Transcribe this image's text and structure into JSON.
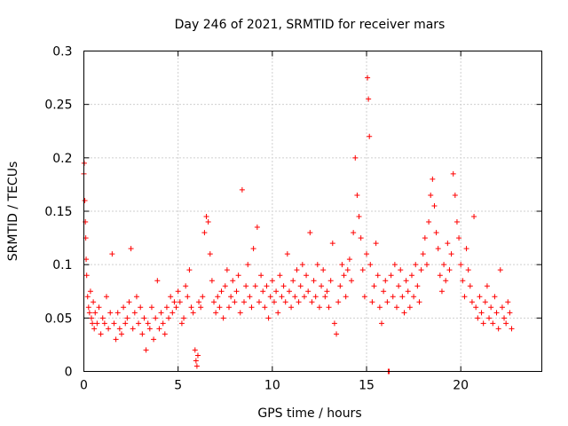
{
  "chart_data": {
    "type": "scatter",
    "title": "Day 246 of 2021, SRMTID for receiver mars",
    "xlabel": "GPS time / hours",
    "ylabel": "SRMTID / TECUs",
    "xlim": [
      0,
      24.3
    ],
    "ylim": [
      0,
      0.3
    ],
    "xticks": [
      0,
      5,
      10,
      15,
      20
    ],
    "xtick_labels": [
      "0",
      "5",
      "10",
      "15",
      "20"
    ],
    "yticks": [
      0,
      0.05,
      0.1,
      0.15,
      0.2,
      0.25,
      0.3
    ],
    "ytick_labels": [
      "0",
      "0.05",
      "0.1",
      "0.15",
      "0.2",
      "0.25",
      "0.3"
    ],
    "grid": true,
    "marker": "plus",
    "colors": {
      "series": "#ff0000",
      "grid": "#a0a0a0",
      "axes": "#000000"
    },
    "series": [
      {
        "name": "SRMTID",
        "points": [
          [
            0.0,
            0.185
          ],
          [
            0.02,
            0.195
          ],
          [
            0.05,
            0.16
          ],
          [
            0.08,
            0.14
          ],
          [
            0.1,
            0.125
          ],
          [
            0.12,
            0.105
          ],
          [
            0.15,
            0.09
          ],
          [
            0.2,
            0.07
          ],
          [
            0.25,
            0.06
          ],
          [
            0.3,
            0.055
          ],
          [
            0.35,
            0.075
          ],
          [
            0.4,
            0.05
          ],
          [
            0.45,
            0.045
          ],
          [
            0.5,
            0.065
          ],
          [
            0.55,
            0.04
          ],
          [
            0.6,
            0.055
          ],
          [
            0.7,
            0.045
          ],
          [
            0.8,
            0.06
          ],
          [
            0.9,
            0.035
          ],
          [
            1.0,
            0.05
          ],
          [
            1.1,
            0.045
          ],
          [
            1.2,
            0.07
          ],
          [
            1.3,
            0.04
          ],
          [
            1.4,
            0.055
          ],
          [
            1.5,
            0.11
          ],
          [
            1.6,
            0.045
          ],
          [
            1.7,
            0.03
          ],
          [
            1.8,
            0.055
          ],
          [
            1.9,
            0.04
          ],
          [
            2.0,
            0.035
          ],
          [
            2.1,
            0.06
          ],
          [
            2.2,
            0.045
          ],
          [
            2.3,
            0.05
          ],
          [
            2.4,
            0.065
          ],
          [
            2.5,
            0.115
          ],
          [
            2.6,
            0.04
          ],
          [
            2.7,
            0.055
          ],
          [
            2.8,
            0.07
          ],
          [
            2.9,
            0.045
          ],
          [
            3.0,
            0.06
          ],
          [
            3.1,
            0.035
          ],
          [
            3.2,
            0.05
          ],
          [
            3.3,
            0.02
          ],
          [
            3.4,
            0.045
          ],
          [
            3.5,
            0.04
          ],
          [
            3.6,
            0.06
          ],
          [
            3.7,
            0.03
          ],
          [
            3.8,
            0.05
          ],
          [
            3.9,
            0.085
          ],
          [
            4.0,
            0.04
          ],
          [
            4.1,
            0.055
          ],
          [
            4.2,
            0.045
          ],
          [
            4.3,
            0.035
          ],
          [
            4.4,
            0.06
          ],
          [
            4.5,
            0.05
          ],
          [
            4.6,
            0.07
          ],
          [
            4.7,
            0.055
          ],
          [
            4.8,
            0.065
          ],
          [
            4.9,
            0.06
          ],
          [
            5.0,
            0.075
          ],
          [
            5.1,
            0.065
          ],
          [
            5.2,
            0.045
          ],
          [
            5.3,
            0.05
          ],
          [
            5.4,
            0.08
          ],
          [
            5.5,
            0.07
          ],
          [
            5.6,
            0.095
          ],
          [
            5.7,
            0.06
          ],
          [
            5.8,
            0.055
          ],
          [
            5.9,
            0.02
          ],
          [
            5.95,
            0.01
          ],
          [
            6.0,
            0.005
          ],
          [
            6.05,
            0.015
          ],
          [
            6.1,
            0.065
          ],
          [
            6.2,
            0.06
          ],
          [
            6.3,
            0.07
          ],
          [
            6.4,
            0.13
          ],
          [
            6.5,
            0.145
          ],
          [
            6.6,
            0.14
          ],
          [
            6.7,
            0.11
          ],
          [
            6.8,
            0.085
          ],
          [
            6.9,
            0.065
          ],
          [
            7.0,
            0.055
          ],
          [
            7.1,
            0.07
          ],
          [
            7.2,
            0.06
          ],
          [
            7.3,
            0.075
          ],
          [
            7.4,
            0.05
          ],
          [
            7.5,
            0.08
          ],
          [
            7.6,
            0.095
          ],
          [
            7.7,
            0.06
          ],
          [
            7.8,
            0.07
          ],
          [
            7.9,
            0.085
          ],
          [
            8.0,
            0.065
          ],
          [
            8.1,
            0.075
          ],
          [
            8.2,
            0.09
          ],
          [
            8.3,
            0.055
          ],
          [
            8.4,
            0.17
          ],
          [
            8.5,
            0.065
          ],
          [
            8.6,
            0.08
          ],
          [
            8.7,
            0.1
          ],
          [
            8.8,
            0.07
          ],
          [
            8.9,
            0.06
          ],
          [
            9.0,
            0.115
          ],
          [
            9.1,
            0.08
          ],
          [
            9.2,
            0.135
          ],
          [
            9.3,
            0.065
          ],
          [
            9.4,
            0.09
          ],
          [
            9.5,
            0.075
          ],
          [
            9.6,
            0.06
          ],
          [
            9.7,
            0.08
          ],
          [
            9.8,
            0.05
          ],
          [
            9.9,
            0.07
          ],
          [
            10.0,
            0.085
          ],
          [
            10.1,
            0.065
          ],
          [
            10.2,
            0.075
          ],
          [
            10.3,
            0.055
          ],
          [
            10.4,
            0.09
          ],
          [
            10.5,
            0.07
          ],
          [
            10.6,
            0.08
          ],
          [
            10.7,
            0.065
          ],
          [
            10.8,
            0.11
          ],
          [
            10.9,
            0.075
          ],
          [
            11.0,
            0.06
          ],
          [
            11.1,
            0.085
          ],
          [
            11.2,
            0.07
          ],
          [
            11.3,
            0.095
          ],
          [
            11.4,
            0.065
          ],
          [
            11.5,
            0.08
          ],
          [
            11.6,
            0.1
          ],
          [
            11.7,
            0.07
          ],
          [
            11.8,
            0.09
          ],
          [
            11.9,
            0.075
          ],
          [
            12.0,
            0.13
          ],
          [
            12.1,
            0.065
          ],
          [
            12.2,
            0.085
          ],
          [
            12.3,
            0.07
          ],
          [
            12.4,
            0.1
          ],
          [
            12.5,
            0.06
          ],
          [
            12.6,
            0.08
          ],
          [
            12.7,
            0.095
          ],
          [
            12.8,
            0.07
          ],
          [
            12.9,
            0.075
          ],
          [
            13.0,
            0.06
          ],
          [
            13.1,
            0.085
          ],
          [
            13.2,
            0.12
          ],
          [
            13.3,
            0.045
          ],
          [
            13.4,
            0.035
          ],
          [
            13.5,
            0.065
          ],
          [
            13.6,
            0.08
          ],
          [
            13.7,
            0.1
          ],
          [
            13.8,
            0.09
          ],
          [
            13.9,
            0.07
          ],
          [
            14.0,
            0.095
          ],
          [
            14.1,
            0.105
          ],
          [
            14.2,
            0.085
          ],
          [
            14.3,
            0.13
          ],
          [
            14.4,
            0.2
          ],
          [
            14.5,
            0.165
          ],
          [
            14.6,
            0.145
          ],
          [
            14.7,
            0.125
          ],
          [
            14.8,
            0.095
          ],
          [
            14.9,
            0.07
          ],
          [
            15.0,
            0.11
          ],
          [
            15.05,
            0.275
          ],
          [
            15.1,
            0.255
          ],
          [
            15.15,
            0.22
          ],
          [
            15.2,
            0.1
          ],
          [
            15.3,
            0.065
          ],
          [
            15.4,
            0.08
          ],
          [
            15.5,
            0.12
          ],
          [
            15.6,
            0.09
          ],
          [
            15.7,
            0.06
          ],
          [
            15.8,
            0.045
          ],
          [
            15.9,
            0.075
          ],
          [
            16.0,
            0.085
          ],
          [
            16.1,
            0.065
          ],
          [
            16.15,
            0.0
          ],
          [
            16.2,
            0.0
          ],
          [
            16.3,
            0.09
          ],
          [
            16.4,
            0.07
          ],
          [
            16.5,
            0.1
          ],
          [
            16.6,
            0.06
          ],
          [
            16.7,
            0.08
          ],
          [
            16.8,
            0.095
          ],
          [
            16.9,
            0.07
          ],
          [
            17.0,
            0.055
          ],
          [
            17.1,
            0.085
          ],
          [
            17.2,
            0.075
          ],
          [
            17.3,
            0.06
          ],
          [
            17.4,
            0.09
          ],
          [
            17.5,
            0.07
          ],
          [
            17.6,
            0.1
          ],
          [
            17.7,
            0.08
          ],
          [
            17.8,
            0.065
          ],
          [
            17.9,
            0.095
          ],
          [
            18.0,
            0.11
          ],
          [
            18.1,
            0.125
          ],
          [
            18.2,
            0.1
          ],
          [
            18.3,
            0.14
          ],
          [
            18.4,
            0.165
          ],
          [
            18.5,
            0.18
          ],
          [
            18.6,
            0.155
          ],
          [
            18.7,
            0.13
          ],
          [
            18.8,
            0.115
          ],
          [
            18.9,
            0.09
          ],
          [
            19.0,
            0.075
          ],
          [
            19.1,
            0.1
          ],
          [
            19.2,
            0.085
          ],
          [
            19.3,
            0.12
          ],
          [
            19.4,
            0.095
          ],
          [
            19.5,
            0.11
          ],
          [
            19.6,
            0.185
          ],
          [
            19.7,
            0.165
          ],
          [
            19.8,
            0.14
          ],
          [
            19.9,
            0.125
          ],
          [
            20.0,
            0.1
          ],
          [
            20.1,
            0.085
          ],
          [
            20.2,
            0.07
          ],
          [
            20.3,
            0.115
          ],
          [
            20.4,
            0.095
          ],
          [
            20.5,
            0.08
          ],
          [
            20.6,
            0.065
          ],
          [
            20.7,
            0.145
          ],
          [
            20.8,
            0.06
          ],
          [
            20.9,
            0.05
          ],
          [
            21.0,
            0.07
          ],
          [
            21.1,
            0.055
          ],
          [
            21.2,
            0.045
          ],
          [
            21.3,
            0.065
          ],
          [
            21.4,
            0.08
          ],
          [
            21.5,
            0.05
          ],
          [
            21.6,
            0.06
          ],
          [
            21.7,
            0.045
          ],
          [
            21.8,
            0.07
          ],
          [
            21.9,
            0.055
          ],
          [
            22.0,
            0.04
          ],
          [
            22.1,
            0.095
          ],
          [
            22.2,
            0.06
          ],
          [
            22.3,
            0.05
          ],
          [
            22.4,
            0.045
          ],
          [
            22.5,
            0.065
          ],
          [
            22.6,
            0.055
          ],
          [
            22.7,
            0.04
          ]
        ]
      }
    ]
  }
}
